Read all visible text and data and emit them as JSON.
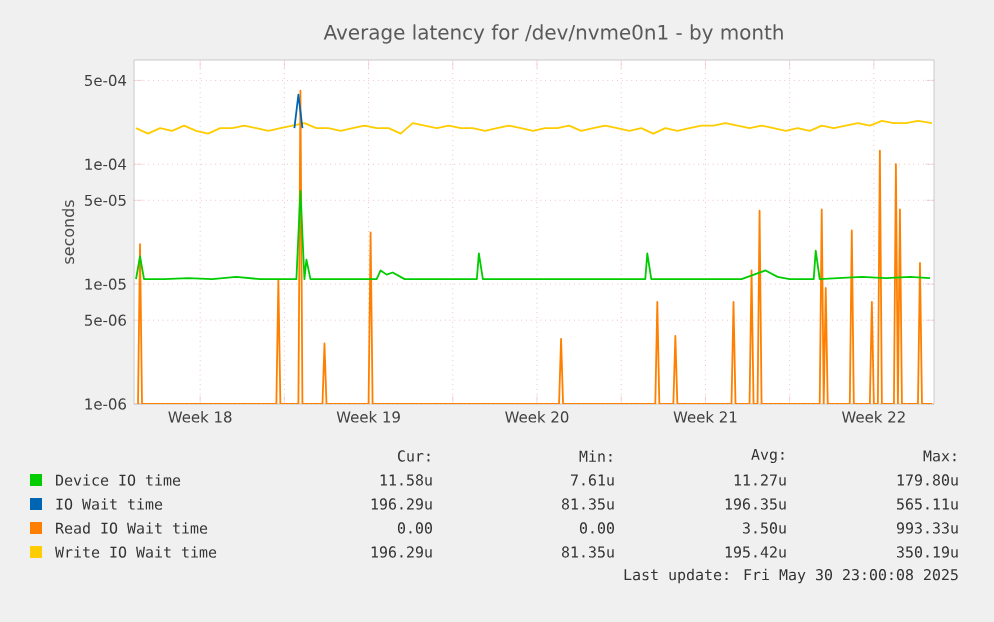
{
  "chart_data": {
    "type": "line",
    "title": "Average latency for /dev/nvme0n1 - by month",
    "ylabel": "seconds",
    "log": true,
    "grid": true,
    "legend": "bottom",
    "marker": "none",
    "line_style": "solid",
    "xlim": [
      "2025-04-27T18:00",
      "2025-05-31T00:00"
    ],
    "xticks": [
      {
        "value": "2025-04-30T12:00",
        "label": "Week 18"
      },
      {
        "value": "2025-05-04T00:00",
        "label": null
      },
      {
        "value": "2025-05-07T12:00",
        "label": "Week 19"
      },
      {
        "value": "2025-05-11T00:00",
        "label": null
      },
      {
        "value": "2025-05-14T12:00",
        "label": "Week 20"
      },
      {
        "value": "2025-05-18T00:00",
        "label": null
      },
      {
        "value": "2025-05-21T12:00",
        "label": "Week 21"
      },
      {
        "value": "2025-05-25T00:00",
        "label": null
      },
      {
        "value": "2025-05-28T12:00",
        "label": "Week 22"
      }
    ],
    "ylim": [
      1e-06,
      0.00074
    ],
    "yticks": [
      {
        "value": 1e-06,
        "label": "1e-06"
      },
      {
        "value": 5e-06,
        "label": "5e-06"
      },
      {
        "value": 1e-05,
        "label": "1e-05"
      },
      {
        "value": 5e-05,
        "label": "5e-05"
      },
      {
        "value": 0.0001,
        "label": "1e-04"
      },
      {
        "value": 0.0005,
        "label": "5e-04"
      }
    ],
    "series": [
      {
        "name": "Device IO time",
        "color": "#00cc00",
        "x": [
          "2025-04-27T20:00",
          "2025-04-28T00:00",
          "2025-04-28T04:00",
          "2025-04-29T00:00",
          "2025-04-30T00:00",
          "2025-05-01T00:00",
          "2025-05-02T00:00",
          "2025-05-03T00:00",
          "2025-05-04T00:00",
          "2025-05-04T12:00",
          "2025-05-04T16:00",
          "2025-05-04T20:00",
          "2025-05-04T22:00",
          "2025-05-05T02:00",
          "2025-05-06T00:00",
          "2025-05-07T00:00",
          "2025-05-07T20:00",
          "2025-05-08T00:00",
          "2025-05-08T06:00",
          "2025-05-08T12:00",
          "2025-05-09T00:00",
          "2025-05-10T00:00",
          "2025-05-11T00:00",
          "2025-05-12T00:00",
          "2025-05-12T02:00",
          "2025-05-12T06:00",
          "2025-05-13T00:00",
          "2025-05-14T00:00",
          "2025-05-15T00:00",
          "2025-05-16T00:00",
          "2025-05-17T00:00",
          "2025-05-18T00:00",
          "2025-05-19T00:00",
          "2025-05-19T02:00",
          "2025-05-19T06:00",
          "2025-05-20T00:00",
          "2025-05-21T00:00",
          "2025-05-22T00:00",
          "2025-05-23T00:00",
          "2025-05-24T00:00",
          "2025-05-24T12:00",
          "2025-05-25T00:00",
          "2025-05-26T00:00",
          "2025-05-26T02:00",
          "2025-05-26T06:00",
          "2025-05-27T00:00",
          "2025-05-28T00:00",
          "2025-05-29T00:00",
          "2025-05-30T00:00",
          "2025-05-30T20:00"
        ],
        "values": [
          1.1e-05,
          1.7e-05,
          1.1e-05,
          1.1e-05,
          1.12e-05,
          1.1e-05,
          1.15e-05,
          1.1e-05,
          1.1e-05,
          1.1e-05,
          6e-05,
          1.1e-05,
          1.6e-05,
          1.1e-05,
          1.1e-05,
          1.1e-05,
          1.1e-05,
          1.3e-05,
          1.2e-05,
          1.25e-05,
          1.1e-05,
          1.1e-05,
          1.1e-05,
          1.1e-05,
          1.8e-05,
          1.1e-05,
          1.1e-05,
          1.1e-05,
          1.1e-05,
          1.1e-05,
          1.1e-05,
          1.1e-05,
          1.1e-05,
          1.8e-05,
          1.1e-05,
          1.1e-05,
          1.1e-05,
          1.1e-05,
          1.1e-05,
          1.3e-05,
          1.15e-05,
          1.1e-05,
          1.1e-05,
          1.9e-05,
          1.1e-05,
          1.12e-05,
          1.15e-05,
          1.12e-05,
          1.15e-05,
          1.12e-05
        ]
      },
      {
        "name": "IO Wait time",
        "color": "#0066b3",
        "x": [
          "2025-05-04T10:00",
          "2025-05-04T14:00",
          "2025-05-04T18:00"
        ],
        "values": [
          0.0002,
          0.00038,
          0.0002
        ]
      },
      {
        "name": "Read IO Wait time",
        "color": "#ff8000",
        "x": [
          "2025-04-27T22:00",
          "2025-04-28T00:00",
          "2025-04-28T02:00",
          "2025-05-03T16:00",
          "2025-05-03T18:00",
          "2025-05-03T20:00",
          "2025-05-04T14:00",
          "2025-05-04T16:00",
          "2025-05-04T18:00",
          "2025-05-05T14:00",
          "2025-05-05T16:00",
          "2025-05-05T18:00",
          "2025-05-07T12:00",
          "2025-05-07T14:00",
          "2025-05-07T16:00",
          "2025-05-15T10:00",
          "2025-05-15T12:00",
          "2025-05-15T14:00",
          "2025-05-19T10:00",
          "2025-05-19T12:00",
          "2025-05-19T14:00",
          "2025-05-20T04:00",
          "2025-05-20T06:00",
          "2025-05-20T08:00",
          "2025-05-22T14:00",
          "2025-05-22T16:00",
          "2025-05-22T18:00",
          "2025-05-23T08:00",
          "2025-05-23T10:00",
          "2025-05-23T12:00",
          "2025-05-23T16:00",
          "2025-05-23T18:00",
          "2025-05-23T20:00",
          "2025-05-26T06:00",
          "2025-05-26T08:00",
          "2025-05-26T10:00",
          "2025-05-26T12:00",
          "2025-05-26T14:00",
          "2025-05-27T12:00",
          "2025-05-27T14:00",
          "2025-05-27T16:00",
          "2025-05-28T08:00",
          "2025-05-28T10:00",
          "2025-05-28T12:00",
          "2025-05-28T16:00",
          "2025-05-28T18:00",
          "2025-05-28T20:00",
          "2025-05-29T08:00",
          "2025-05-29T10:00",
          "2025-05-29T12:00",
          "2025-05-29T14:00",
          "2025-05-29T16:00",
          "2025-05-30T08:00",
          "2025-05-30T10:00",
          "2025-05-30T12:00",
          "2025-05-30T22:00"
        ],
        "values": [
          1e-06,
          2.15e-05,
          1e-06,
          1e-06,
          1.08e-05,
          1e-06,
          1e-06,
          0.00041,
          1e-06,
          1e-06,
          3.2e-06,
          1e-06,
          1e-06,
          2.7e-05,
          1e-06,
          1e-06,
          3.5e-06,
          1e-06,
          1e-06,
          7.1e-06,
          1e-06,
          1e-06,
          3.7e-06,
          1e-06,
          1e-06,
          7.1e-06,
          1e-06,
          1e-06,
          1.3e-05,
          1e-06,
          1e-06,
          4.1e-05,
          1e-06,
          1e-06,
          4.2e-05,
          1e-06,
          9.3e-06,
          1e-06,
          1e-06,
          2.8e-05,
          1e-06,
          1e-06,
          7.1e-06,
          1e-06,
          1e-06,
          0.00013,
          1e-06,
          1e-06,
          0.0001,
          1e-06,
          4.2e-05,
          1e-06,
          1e-06,
          1.5e-05,
          1e-06,
          1e-06
        ]
      },
      {
        "name": "Write IO Wait time",
        "color": "#ffcc00",
        "x": [
          "2025-04-27T20:00",
          "2025-04-28T08:00",
          "2025-04-28T20:00",
          "2025-04-29T08:00",
          "2025-04-29T20:00",
          "2025-04-30T08:00",
          "2025-04-30T20:00",
          "2025-05-01T08:00",
          "2025-05-01T20:00",
          "2025-05-02T08:00",
          "2025-05-02T20:00",
          "2025-05-03T08:00",
          "2025-05-03T20:00",
          "2025-05-04T08:00",
          "2025-05-04T20:00",
          "2025-05-05T08:00",
          "2025-05-05T20:00",
          "2025-05-06T08:00",
          "2025-05-06T20:00",
          "2025-05-07T08:00",
          "2025-05-07T20:00",
          "2025-05-08T08:00",
          "2025-05-08T20:00",
          "2025-05-09T08:00",
          "2025-05-09T20:00",
          "2025-05-10T08:00",
          "2025-05-10T20:00",
          "2025-05-11T08:00",
          "2025-05-11T20:00",
          "2025-05-12T08:00",
          "2025-05-12T20:00",
          "2025-05-13T08:00",
          "2025-05-13T20:00",
          "2025-05-14T08:00",
          "2025-05-14T20:00",
          "2025-05-15T08:00",
          "2025-05-15T20:00",
          "2025-05-16T08:00",
          "2025-05-16T20:00",
          "2025-05-17T08:00",
          "2025-05-17T20:00",
          "2025-05-18T08:00",
          "2025-05-18T20:00",
          "2025-05-19T08:00",
          "2025-05-19T20:00",
          "2025-05-20T08:00",
          "2025-05-20T20:00",
          "2025-05-21T08:00",
          "2025-05-21T20:00",
          "2025-05-22T08:00",
          "2025-05-22T20:00",
          "2025-05-23T08:00",
          "2025-05-23T20:00",
          "2025-05-24T08:00",
          "2025-05-24T20:00",
          "2025-05-25T08:00",
          "2025-05-25T20:00",
          "2025-05-26T08:00",
          "2025-05-26T20:00",
          "2025-05-27T08:00",
          "2025-05-27T20:00",
          "2025-05-28T08:00",
          "2025-05-28T20:00",
          "2025-05-29T08:00",
          "2025-05-29T20:00",
          "2025-05-30T08:00",
          "2025-05-30T22:00"
        ],
        "values": [
          0.0002,
          0.00018,
          0.0002,
          0.00019,
          0.00021,
          0.00019,
          0.00018,
          0.0002,
          0.0002,
          0.00021,
          0.0002,
          0.00019,
          0.0002,
          0.00021,
          0.00022,
          0.0002,
          0.0002,
          0.00019,
          0.0002,
          0.00021,
          0.0002,
          0.0002,
          0.00018,
          0.00022,
          0.00021,
          0.0002,
          0.00021,
          0.0002,
          0.0002,
          0.00019,
          0.0002,
          0.00021,
          0.0002,
          0.00019,
          0.0002,
          0.0002,
          0.00021,
          0.00019,
          0.0002,
          0.00021,
          0.0002,
          0.00019,
          0.0002,
          0.00018,
          0.0002,
          0.00019,
          0.0002,
          0.00021,
          0.00021,
          0.00022,
          0.00021,
          0.0002,
          0.00021,
          0.0002,
          0.00019,
          0.0002,
          0.00019,
          0.00021,
          0.0002,
          0.00021,
          0.00022,
          0.00021,
          0.00023,
          0.00022,
          0.00022,
          0.00023,
          0.00022
        ]
      }
    ],
    "annotations": [
      "Cur:",
      "Min:",
      "Avg:",
      "Max:",
      "11.58u",
      "7.61u",
      "11.27u",
      "179.80u",
      "196.29u",
      "81.35u",
      "196.35u",
      "565.11u",
      "0.00",
      "0.00",
      "3.50u",
      "993.33u",
      "196.29u",
      "81.35u",
      "195.42u",
      "350.19u",
      "Last update: Fri May 30 23:00:08 2025"
    ]
  }
}
